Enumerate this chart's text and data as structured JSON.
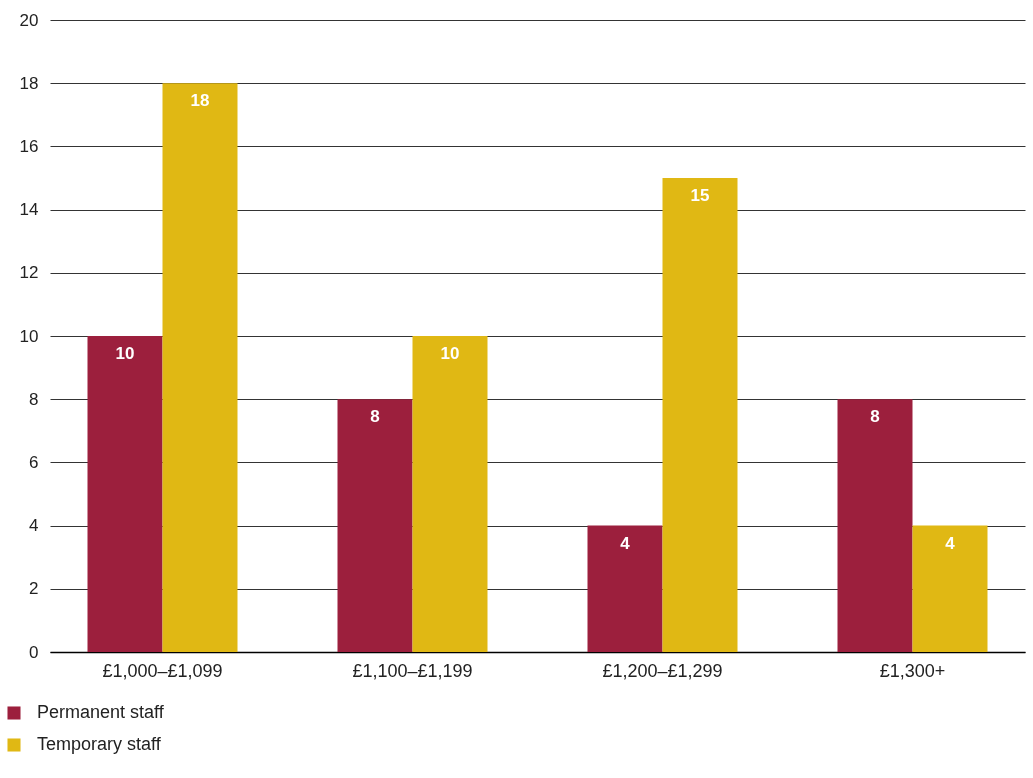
{
  "chart_data": {
    "type": "bar",
    "categories": [
      "£1,000–£1,099",
      "£1,100–£1,199",
      "£1,200–£1,299",
      "£1,300+"
    ],
    "series": [
      {
        "name": "Permanent staff",
        "color": "#9c1f3d",
        "values": [
          10,
          8,
          4,
          8
        ]
      },
      {
        "name": "Temporary staff",
        "color": "#e0b814",
        "values": [
          18,
          10,
          15,
          4
        ]
      }
    ],
    "ylim": [
      0,
      20
    ],
    "yticks": [
      0,
      2,
      4,
      6,
      8,
      10,
      12,
      14,
      16,
      18,
      20
    ],
    "grid": "y",
    "legend": "bottom left",
    "data_labels": true
  }
}
